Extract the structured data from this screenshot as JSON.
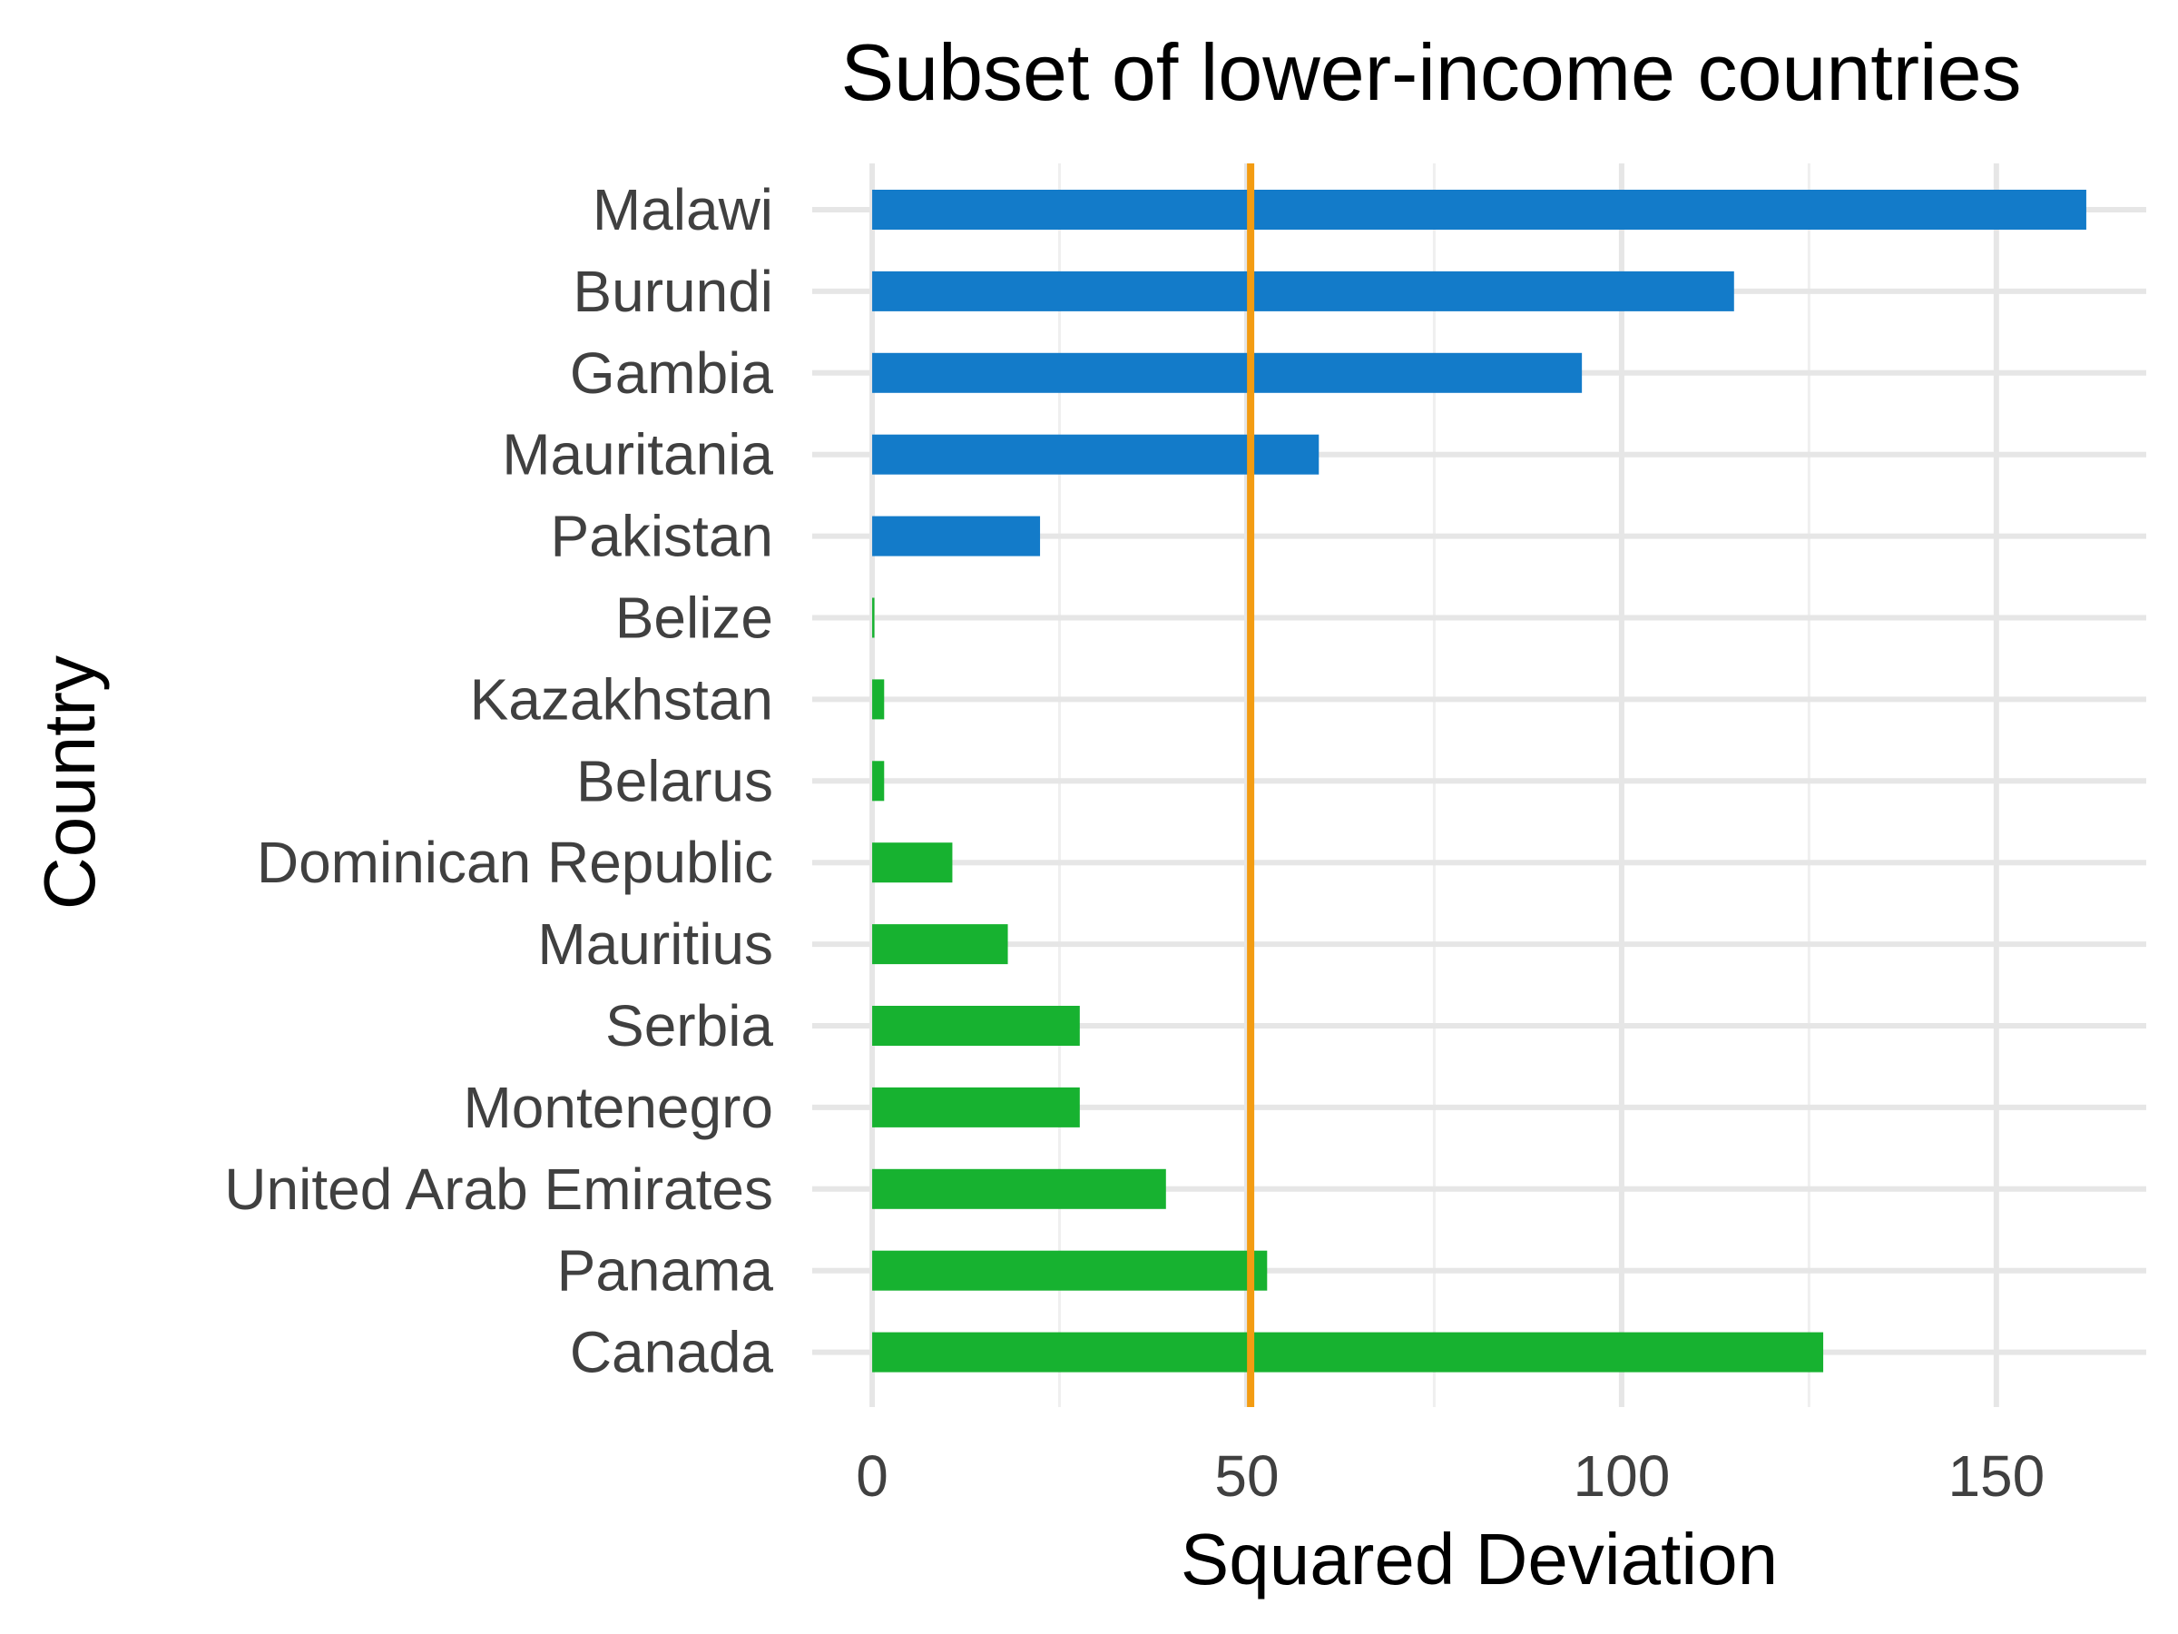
{
  "chart_data": {
    "type": "bar",
    "orientation": "horizontal",
    "title": "Subset of lower-income countries",
    "xlabel": "Squared Deviation",
    "ylabel": "Country",
    "xlim": [
      -8,
      170
    ],
    "xticks": [
      0,
      50,
      100,
      150
    ],
    "grid": true,
    "reference_line": {
      "value": 50.5,
      "color": "#F39C12"
    },
    "colors": {
      "above_group": "#137BC9",
      "below_group": "#17B230"
    },
    "categories": [
      "Malawi",
      "Burundi",
      "Gambia",
      "Mauritania",
      "Pakistan",
      "Belize",
      "Kazakhstan",
      "Belarus",
      "Dominican Republic",
      "Mauritius",
      "Serbia",
      "Montenegro",
      "United Arab Emirates",
      "Panama",
      "Canada"
    ],
    "values": [
      162.0,
      115.0,
      94.7,
      59.6,
      22.4,
      0.3,
      1.6,
      1.6,
      10.7,
      18.1,
      27.7,
      27.7,
      39.2,
      52.7,
      126.9
    ],
    "groups": [
      "above_group",
      "above_group",
      "above_group",
      "above_group",
      "above_group",
      "below_group",
      "below_group",
      "below_group",
      "below_group",
      "below_group",
      "below_group",
      "below_group",
      "below_group",
      "below_group",
      "below_group"
    ]
  }
}
